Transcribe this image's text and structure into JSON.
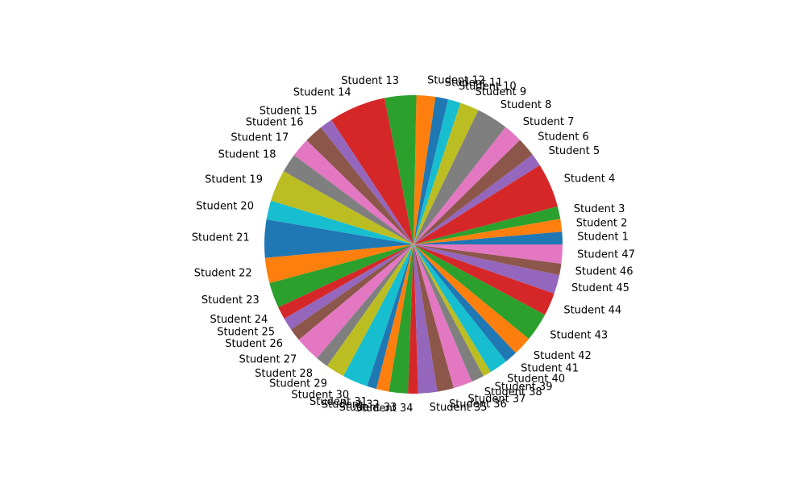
{
  "chart_data": {
    "type": "pie",
    "title": "",
    "categories": [
      "Student 1",
      "Student 2",
      "Student 3",
      "Student 4",
      "Student 5",
      "Student 6",
      "Student 7",
      "Student 8",
      "Student 9",
      "Student 10",
      "Student 11",
      "Student 12",
      "Student 13",
      "Student 14",
      "Student 15",
      "Student 16",
      "Student 17",
      "Student 18",
      "Student 19",
      "Student 20",
      "Student 21",
      "Student 22",
      "Student 23",
      "Student 24",
      "Student 25",
      "Student 26",
      "Student 27",
      "Student 28",
      "Student 29",
      "Student 30",
      "Student 31",
      "Student 32",
      "Student 33",
      "Student 34",
      "Student 35",
      "Student 36",
      "Student 37",
      "Student 38",
      "Student 39",
      "Student 40",
      "Student 41",
      "Student 42",
      "Student 43",
      "Student 44",
      "Student 45",
      "Student 46",
      "Student 47"
    ],
    "values": [
      2.0,
      2.0,
      2.0,
      7.0,
      2.0,
      3.0,
      3.0,
      5.0,
      3.0,
      2.0,
      2.0,
      3.0,
      5.0,
      9.0,
      2.0,
      3.0,
      3.0,
      3.0,
      5.0,
      3.0,
      6.0,
      4.0,
      4.0,
      2.0,
      2.0,
      2.0,
      4.0,
      2.0,
      3.0,
      4.0,
      1.5,
      2.0,
      3.0,
      1.6,
      3.0,
      2.6,
      3.0,
      2.0,
      1.3,
      2.9,
      2.0,
      3.0,
      4.5,
      3.6,
      3.0,
      1.8,
      3.0
    ],
    "colors": [
      "#1f77b4",
      "#ff7f0e",
      "#2ca02c",
      "#d62728",
      "#9467bd",
      "#8c564b",
      "#e377c2",
      "#7f7f7f",
      "#bcbd22",
      "#17becf"
    ],
    "start_angle_deg": 0,
    "direction": "counterclockwise",
    "legend": "none"
  }
}
